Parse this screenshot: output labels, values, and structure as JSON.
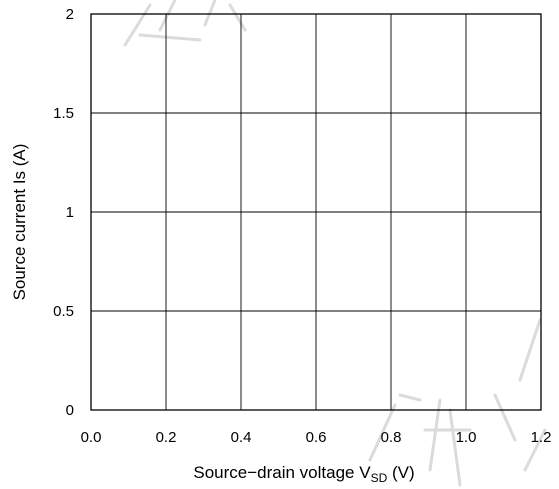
{
  "chart_data": {
    "type": "line",
    "title": "",
    "xlabel": "Source−drain voltage V",
    "xlabel_sub": "SD",
    "xlabel_unit": " (V)",
    "ylabel": "Source current Is (A)",
    "xlim": [
      0.0,
      1.2
    ],
    "ylim": [
      0,
      2
    ],
    "x_ticks": [
      "0.0",
      "0.2",
      "0.4",
      "0.6",
      "0.8",
      "1.0",
      "1.2"
    ],
    "y_ticks": [
      "0",
      "0.5",
      "1",
      "1.5",
      "2"
    ],
    "grid": true,
    "series": []
  }
}
